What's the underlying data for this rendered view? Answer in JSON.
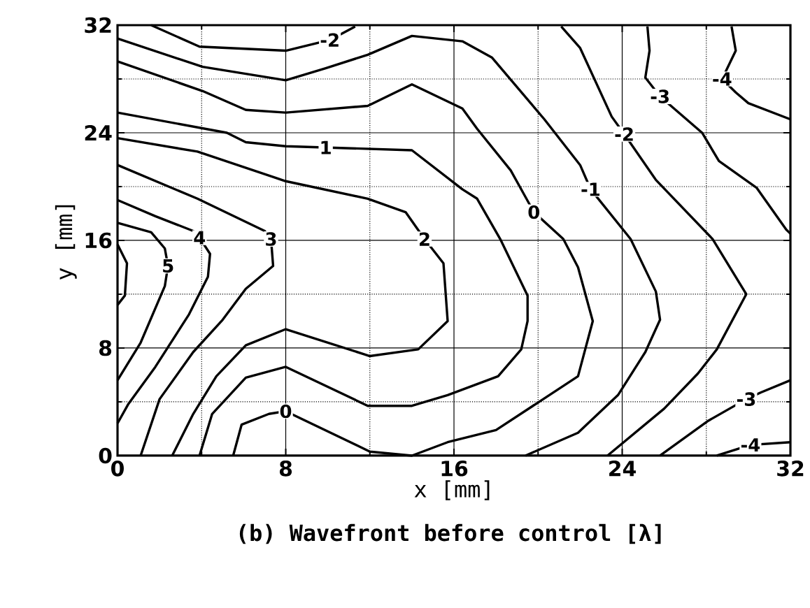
{
  "chart_data": {
    "type": "line",
    "title": "(b) Wavefront before control [λ]",
    "xlabel": "x [mm]",
    "ylabel": "y [mm]",
    "xlim": [
      0,
      32
    ],
    "ylim": [
      0,
      32
    ],
    "xticks": [
      0,
      {
        "value": 4,
        "label": null
      },
      8,
      {
        "value": 12,
        "label": null
      },
      16,
      {
        "value": 20,
        "label": null
      },
      24,
      {
        "value": 28,
        "label": null
      },
      32
    ],
    "yticks": [
      0,
      {
        "value": 4,
        "label": null
      },
      8,
      {
        "value": 12,
        "label": null
      },
      16,
      {
        "value": 20,
        "label": null
      },
      24,
      {
        "value": 28,
        "label": null
      },
      32
    ],
    "grid": true,
    "marker": "none",
    "line_style": "solid",
    "series": [
      {
        "color": "#000000",
        "x": [
          1.6,
          3.9,
          8,
          10.1,
          11.3
        ],
        "values": [
          32,
          30.4,
          30.1,
          30.9,
          31.9
        ]
      },
      {
        "color": "#000000",
        "x": [
          0,
          4.05,
          8,
          9.9,
          11.9,
          14,
          16.4,
          17.8,
          20.3,
          22.0,
          22.5,
          24.4,
          25.6,
          25.8,
          25.1,
          23.8,
          21.9,
          19.4
        ],
        "values": [
          31.0,
          28.9,
          27.9,
          28.8,
          29.8,
          31.2,
          30.8,
          29.6,
          25.0,
          21.6,
          19.8,
          16.1,
          12.2,
          10.1,
          7.7,
          4.5,
          1.7,
          0
        ]
      },
      {
        "color": "#000000",
        "x": [
          0,
          4.05,
          6.1,
          8,
          11.9,
          14,
          16.4,
          17.1,
          18.7,
          19.8,
          21.2,
          21.9,
          22.6,
          21.9,
          18.0,
          15.7,
          14.0,
          12.0,
          8.0,
          7.2,
          5.9,
          5.5
        ],
        "values": [
          29.3,
          27.1,
          25.7,
          25.5,
          26.0,
          27.6,
          25.8,
          24.3,
          21.2,
          18.1,
          16.1,
          14.0,
          10.0,
          5.9,
          1.9,
          1.0,
          0,
          0.3,
          3.3,
          3.1,
          2.3,
          0
        ]
      },
      {
        "color": "#000000",
        "x": [
          0,
          5.2,
          6.1,
          8,
          14,
          16.4,
          17.1,
          18.2,
          19.5,
          19.5,
          19.2,
          18.1,
          15.7,
          14.0,
          11.9,
          8,
          6.1,
          4.5,
          3.9
        ],
        "values": [
          25.5,
          24.0,
          23.3,
          23.0,
          22.7,
          19.8,
          19.1,
          16.1,
          11.9,
          10.0,
          7.9,
          5.9,
          4.5,
          3.7,
          3.7,
          6.6,
          5.8,
          3.1,
          0
        ]
      },
      {
        "color": "#000000",
        "x": [
          0,
          3.8,
          8,
          11.9,
          13.7,
          14.6,
          15.5,
          15.7,
          14.3,
          12.0,
          8,
          6.1,
          4.7,
          3.6,
          2.6
        ],
        "values": [
          23.6,
          22.6,
          20.4,
          19.1,
          18.1,
          16.1,
          14.3,
          10.0,
          7.9,
          7.4,
          9.4,
          8.2,
          5.9,
          3.1,
          0
        ]
      },
      {
        "color": "#000000",
        "x": [
          0,
          3.8,
          7.0,
          7.3,
          7.4,
          6.1,
          5.0,
          3.6,
          2.0,
          1.1
        ],
        "values": [
          21.6,
          19.1,
          16.7,
          16.1,
          14.1,
          12.4,
          10.1,
          7.7,
          4.2,
          0
        ]
      },
      {
        "color": "#000000",
        "x": [
          0,
          1.8,
          3.6,
          3.9,
          4.4,
          4.3,
          3.4,
          1.8,
          0.5,
          0
        ],
        "values": [
          19.0,
          17.8,
          16.7,
          16.2,
          15.0,
          13.3,
          10.5,
          6.6,
          3.8,
          2.4
        ]
      },
      {
        "color": "#000000",
        "x": [
          0,
          1.6,
          2.25,
          2.4,
          2.25,
          1.1,
          0
        ],
        "values": [
          17.3,
          16.6,
          15.4,
          14.1,
          12.6,
          8.4,
          5.6
        ]
      },
      {
        "color": "#000000",
        "x": [
          0,
          0.45,
          0.35,
          0
        ],
        "values": [
          15.7,
          14.3,
          11.9,
          11.2
        ]
      },
      {
        "color": "#000000",
        "x": [
          21.1,
          22.0,
          23.5,
          24.1,
          25.6,
          28.3,
          29.9,
          28.5,
          27.6,
          26.0,
          23.3
        ],
        "values": [
          31.9,
          30.3,
          25.2,
          23.9,
          20.5,
          16.1,
          12.0,
          7.9,
          6.1,
          3.5,
          0
        ]
      },
      {
        "color": "#000000",
        "x": [
          25.2,
          25.3,
          25.1,
          25.8,
          27.8,
          28.6,
          30.4,
          31.8,
          32
        ],
        "values": [
          31.9,
          30.1,
          28.1,
          26.7,
          24.0,
          21.9,
          19.9,
          16.8,
          16.5
        ]
      },
      {
        "color": "#000000",
        "x": [
          32,
          30.6,
          29.9,
          28.1,
          25.8
        ],
        "values": [
          5.6,
          4.7,
          4.2,
          2.6,
          0
        ]
      },
      {
        "color": "#000000",
        "x": [
          29.2,
          29.4,
          29.0,
          28.75,
          29.4,
          30.0,
          32
        ],
        "values": [
          31.9,
          30.1,
          28.8,
          28.0,
          27.0,
          26.2,
          25.0
        ]
      },
      {
        "color": "#000000",
        "x": [
          32,
          30.1,
          28.5
        ],
        "values": [
          1.0,
          0.8,
          0
        ]
      }
    ],
    "annotations": [
      {
        "text": "-2",
        "x": 10.1,
        "y": 30.9
      },
      {
        "text": "1",
        "x": 9.9,
        "y": 22.9
      },
      {
        "text": "2",
        "x": 14.6,
        "y": 16.1
      },
      {
        "text": "3",
        "x": 7.3,
        "y": 16.1
      },
      {
        "text": "4",
        "x": 3.9,
        "y": 16.2
      },
      {
        "text": "5",
        "x": 2.4,
        "y": 14.1
      },
      {
        "text": "0",
        "x": 19.8,
        "y": 18.1
      },
      {
        "text": "0",
        "x": 8.0,
        "y": 3.3
      },
      {
        "text": "-1",
        "x": 22.5,
        "y": 19.8
      },
      {
        "text": "-2",
        "x": 24.1,
        "y": 23.9
      },
      {
        "text": "-3",
        "x": 25.8,
        "y": 26.7
      },
      {
        "text": "-4",
        "x": 28.75,
        "y": 28.0
      },
      {
        "text": "-3",
        "x": 29.9,
        "y": 4.2
      },
      {
        "text": "-4",
        "x": 30.1,
        "y": 0.8
      }
    ]
  }
}
